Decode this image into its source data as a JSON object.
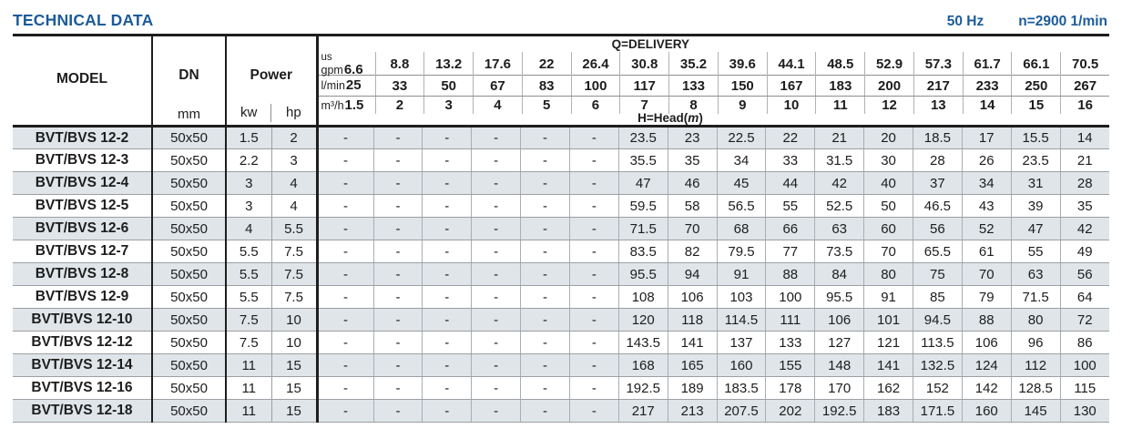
{
  "header": {
    "title": "TECHNICAL DATA",
    "frequency": "50 Hz",
    "speed": "n=2900 1/min"
  },
  "table": {
    "model_label": "MODEL",
    "dn_label": "DN",
    "dn_unit": "mm",
    "power_label": "Power",
    "power_units": [
      "kw",
      "hp"
    ],
    "delivery_label": "Q=DELIVERY",
    "head_label_pre": "H=Head(",
    "head_label_unit": "m",
    "head_label_post": ")",
    "delivery_header_rows": [
      {
        "key": "us-gpm",
        "unit_top": "us",
        "unit": "gpm",
        "values": [
          "6.6",
          "8.8",
          "13.2",
          "17.6",
          "22",
          "26.4",
          "30.8",
          "35.2",
          "39.6",
          "44.1",
          "48.5",
          "52.9",
          "57.3",
          "61.7",
          "66.1",
          "70.5"
        ]
      },
      {
        "key": "l-min",
        "unit_top": "",
        "unit": "l/min",
        "values": [
          "25",
          "33",
          "50",
          "67",
          "83",
          "100",
          "117",
          "133",
          "150",
          "167",
          "183",
          "200",
          "217",
          "233",
          "250",
          "267"
        ]
      },
      {
        "key": "m3-h",
        "unit_top": "",
        "unit": "m³/h",
        "values": [
          "1.5",
          "2",
          "3",
          "4",
          "5",
          "6",
          "7",
          "8",
          "9",
          "10",
          "11",
          "12",
          "13",
          "14",
          "15",
          "16"
        ]
      }
    ],
    "rows": [
      {
        "model": "BVT/BVS 12-2",
        "dn": "50x50",
        "kw": "1.5",
        "hp": "2",
        "head": [
          "-",
          "-",
          "-",
          "-",
          "-",
          "-",
          "23.5",
          "23",
          "22.5",
          "22",
          "21",
          "20",
          "18.5",
          "17",
          "15.5",
          "14"
        ]
      },
      {
        "model": "BVT/BVS 12-3",
        "dn": "50x50",
        "kw": "2.2",
        "hp": "3",
        "head": [
          "-",
          "-",
          "-",
          "-",
          "-",
          "-",
          "35.5",
          "35",
          "34",
          "33",
          "31.5",
          "30",
          "28",
          "26",
          "23.5",
          "21"
        ]
      },
      {
        "model": "BVT/BVS 12-4",
        "dn": "50x50",
        "kw": "3",
        "hp": "4",
        "head": [
          "-",
          "-",
          "-",
          "-",
          "-",
          "-",
          "47",
          "46",
          "45",
          "44",
          "42",
          "40",
          "37",
          "34",
          "31",
          "28"
        ]
      },
      {
        "model": "BVT/BVS 12-5",
        "dn": "50x50",
        "kw": "3",
        "hp": "4",
        "head": [
          "-",
          "-",
          "-",
          "-",
          "-",
          "-",
          "59.5",
          "58",
          "56.5",
          "55",
          "52.5",
          "50",
          "46.5",
          "43",
          "39",
          "35"
        ]
      },
      {
        "model": "BVT/BVS 12-6",
        "dn": "50x50",
        "kw": "4",
        "hp": "5.5",
        "head": [
          "-",
          "-",
          "-",
          "-",
          "-",
          "-",
          "71.5",
          "70",
          "68",
          "66",
          "63",
          "60",
          "56",
          "52",
          "47",
          "42"
        ]
      },
      {
        "model": "BVT/BVS 12-7",
        "dn": "50x50",
        "kw": "5.5",
        "hp": "7.5",
        "head": [
          "-",
          "-",
          "-",
          "-",
          "-",
          "-",
          "83.5",
          "82",
          "79.5",
          "77",
          "73.5",
          "70",
          "65.5",
          "61",
          "55",
          "49"
        ]
      },
      {
        "model": "BVT/BVS 12-8",
        "dn": "50x50",
        "kw": "5.5",
        "hp": "7.5",
        "head": [
          "-",
          "-",
          "-",
          "-",
          "-",
          "-",
          "95.5",
          "94",
          "91",
          "88",
          "84",
          "80",
          "75",
          "70",
          "63",
          "56"
        ]
      },
      {
        "model": "BVT/BVS 12-9",
        "dn": "50x50",
        "kw": "5.5",
        "hp": "7.5",
        "head": [
          "-",
          "-",
          "-",
          "-",
          "-",
          "-",
          "108",
          "106",
          "103",
          "100",
          "95.5",
          "91",
          "85",
          "79",
          "71.5",
          "64"
        ]
      },
      {
        "model": "BVT/BVS 12-10",
        "dn": "50x50",
        "kw": "7.5",
        "hp": "10",
        "head": [
          "-",
          "-",
          "-",
          "-",
          "-",
          "-",
          "120",
          "118",
          "114.5",
          "111",
          "106",
          "101",
          "94.5",
          "88",
          "80",
          "72"
        ]
      },
      {
        "model": "BVT/BVS 12-12",
        "dn": "50x50",
        "kw": "7.5",
        "hp": "10",
        "head": [
          "-",
          "-",
          "-",
          "-",
          "-",
          "-",
          "143.5",
          "141",
          "137",
          "133",
          "127",
          "121",
          "113.5",
          "106",
          "96",
          "86"
        ]
      },
      {
        "model": "BVT/BVS 12-14",
        "dn": "50x50",
        "kw": "11",
        "hp": "15",
        "head": [
          "-",
          "-",
          "-",
          "-",
          "-",
          "-",
          "168",
          "165",
          "160",
          "155",
          "148",
          "141",
          "132.5",
          "124",
          "112",
          "100"
        ]
      },
      {
        "model": "BVT/BVS 12-16",
        "dn": "50x50",
        "kw": "11",
        "hp": "15",
        "head": [
          "-",
          "-",
          "-",
          "-",
          "-",
          "-",
          "192.5",
          "189",
          "183.5",
          "178",
          "170",
          "162",
          "152",
          "142",
          "128.5",
          "115"
        ]
      },
      {
        "model": "BVT/BVS 12-18",
        "dn": "50x50",
        "kw": "11",
        "hp": "15",
        "head": [
          "-",
          "-",
          "-",
          "-",
          "-",
          "-",
          "217",
          "213",
          "207.5",
          "202",
          "192.5",
          "183",
          "171.5",
          "160",
          "145",
          "130"
        ]
      }
    ]
  },
  "colors": {
    "accent_blue": "#1b5b9b",
    "row_shade": "#dfe5e9",
    "line_black": "#1e1e1e",
    "line_gray": "#9c9fa3"
  }
}
